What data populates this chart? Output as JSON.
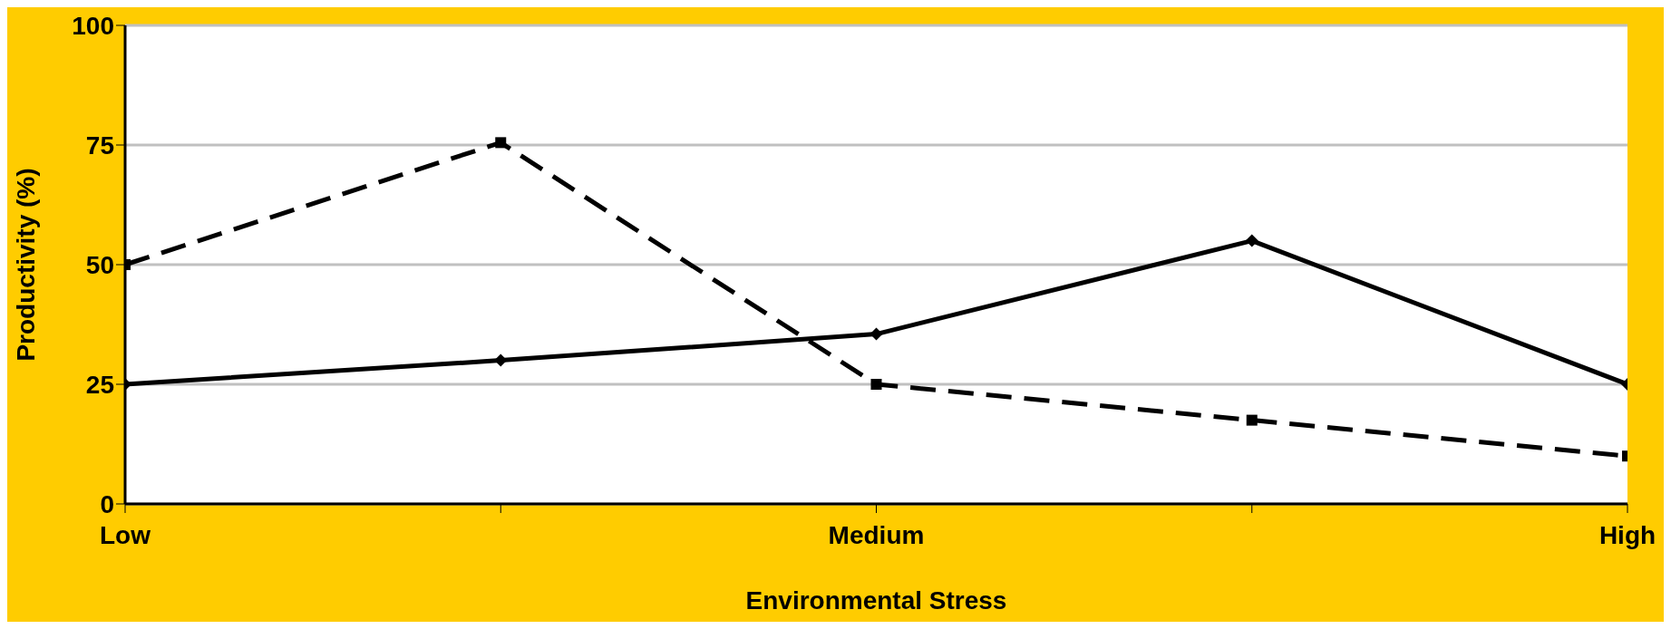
{
  "chart_data": {
    "type": "line",
    "xlabel": "Environmental Stress",
    "ylabel": "Productivity (%)",
    "categories": [
      "Low",
      null,
      "Medium",
      null,
      "High"
    ],
    "series": [
      {
        "color": "#000000",
        "values": [
          25,
          30,
          35.5,
          55,
          25
        ],
        "marker": "diamond",
        "line_style": "solid"
      },
      {
        "color": "#000000",
        "values": [
          50,
          75.5,
          25,
          17.5,
          10
        ],
        "marker": "square",
        "line_style": "dashed"
      }
    ],
    "ylim": [
      0,
      100
    ],
    "yticks": [
      0,
      25,
      50,
      75,
      100
    ],
    "grid": "y"
  }
}
